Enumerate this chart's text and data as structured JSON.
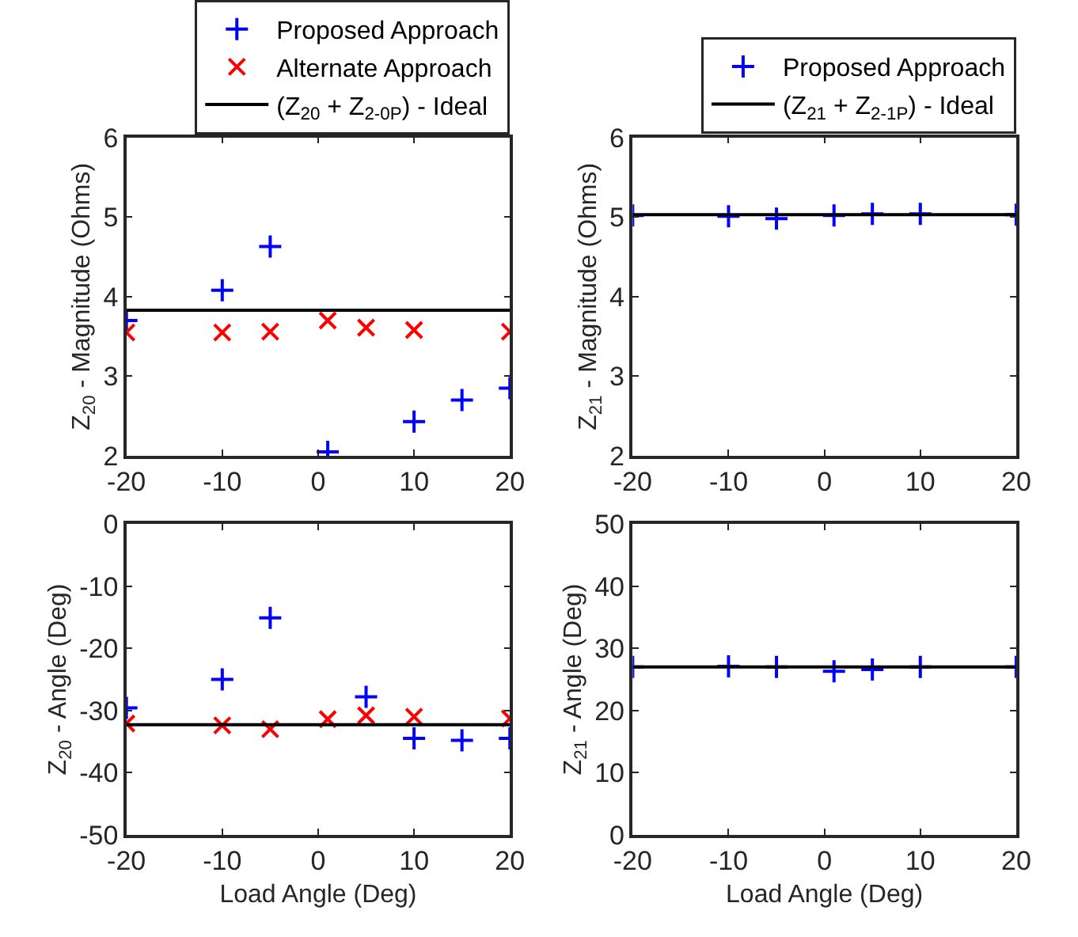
{
  "chart_data": [
    {
      "type": "scatter",
      "ylabel": "Z$_{20}$ - Magnitude (Ohms)",
      "xlim": [
        -20,
        20
      ],
      "xticks": [
        -20,
        -10,
        0,
        10,
        20
      ],
      "ylim": [
        2,
        6
      ],
      "yticks": [
        2,
        3,
        4,
        5,
        6
      ],
      "legend": "top",
      "series": [
        {
          "name": "Proposed Approach",
          "color": "#0000ff",
          "marker": "cross",
          "x": [
            -20,
            -10,
            -5,
            1,
            10,
            15,
            20
          ],
          "values": [
            3.7,
            4.08,
            4.63,
            2.05,
            2.43,
            2.7,
            2.85
          ]
        },
        {
          "name": "Alternate Approach",
          "color": "#ff0000",
          "marker": "x",
          "x": [
            -20,
            -10,
            -5,
            1,
            5,
            10,
            20
          ],
          "values": [
            3.55,
            3.55,
            3.56,
            3.7,
            3.61,
            3.58,
            3.56
          ]
        },
        {
          "name": "(Z$_{20}$ + Z$_{2-0P}$) - Ideal",
          "type": "line",
          "color": "#000000",
          "marker": "none",
          "line_style": "solid",
          "x": [
            -20,
            20
          ],
          "values": [
            3.83,
            3.83
          ]
        }
      ]
    },
    {
      "type": "scatter",
      "ylabel": "Z$_{21}$ - Magnitude (Ohms)",
      "xlim": [
        -20,
        20
      ],
      "xticks": [
        -20,
        -10,
        0,
        10,
        20
      ],
      "ylim": [
        2,
        6
      ],
      "yticks": [
        2,
        3,
        4,
        5,
        6
      ],
      "legend": "top",
      "series": [
        {
          "name": "Proposed Approach",
          "color": "#0000ff",
          "marker": "cross",
          "x": [
            -20,
            -10,
            -5,
            1,
            5,
            10,
            20
          ],
          "values": [
            5.02,
            5.01,
            4.98,
            5.02,
            5.04,
            5.04,
            5.03
          ]
        },
        {
          "name": "(Z$_{21}$ + Z$_{2-1P}$) - Ideal",
          "type": "line",
          "color": "#000000",
          "marker": "none",
          "line_style": "solid",
          "x": [
            -20,
            20
          ],
          "values": [
            5.03,
            5.03
          ]
        }
      ]
    },
    {
      "type": "scatter",
      "xlabel": "Load Angle (Deg)",
      "ylabel": "Z$_{20}$ - Angle (Deg)",
      "xlim": [
        -20,
        20
      ],
      "xticks": [
        -20,
        -10,
        0,
        10,
        20
      ],
      "ylim": [
        -50,
        0
      ],
      "yticks": [
        -50,
        -40,
        -30,
        -20,
        -10,
        0
      ],
      "legend": false,
      "series": [
        {
          "color": "#0000ff",
          "marker": "cross",
          "x": [
            -20,
            -10,
            -5,
            5,
            10,
            15,
            20
          ],
          "values": [
            -29.6,
            -25,
            -15.1,
            -27.8,
            -34.5,
            -34.8,
            -34.5
          ]
        },
        {
          "color": "#ff0000",
          "marker": "x",
          "x": [
            -20,
            -10,
            -5,
            1,
            5,
            10,
            20
          ],
          "values": [
            -32.1,
            -32.4,
            -33,
            -31.4,
            -30.8,
            -31,
            -31.3
          ]
        },
        {
          "type": "line",
          "color": "#000000",
          "marker": "none",
          "line_style": "solid",
          "x": [
            -20,
            20
          ],
          "values": [
            -32.3,
            -32.3
          ]
        }
      ]
    },
    {
      "type": "scatter",
      "xlabel": "Load Angle (Deg)",
      "ylabel": "Z$_{21}$ - Angle (Deg)",
      "xlim": [
        -20,
        20
      ],
      "xticks": [
        -20,
        -10,
        0,
        10,
        20
      ],
      "ylim": [
        0,
        50
      ],
      "yticks": [
        0,
        10,
        20,
        30,
        40,
        50
      ],
      "legend": false,
      "series": [
        {
          "color": "#0000ff",
          "marker": "cross",
          "x": [
            -20,
            -10,
            -5,
            1,
            5,
            10,
            20
          ],
          "values": [
            27,
            27.1,
            27,
            26.3,
            26.6,
            27,
            27
          ]
        },
        {
          "type": "line",
          "color": "#000000",
          "marker": "none",
          "line_style": "solid",
          "x": [
            -20,
            20
          ],
          "values": [
            27,
            27
          ]
        }
      ]
    }
  ]
}
